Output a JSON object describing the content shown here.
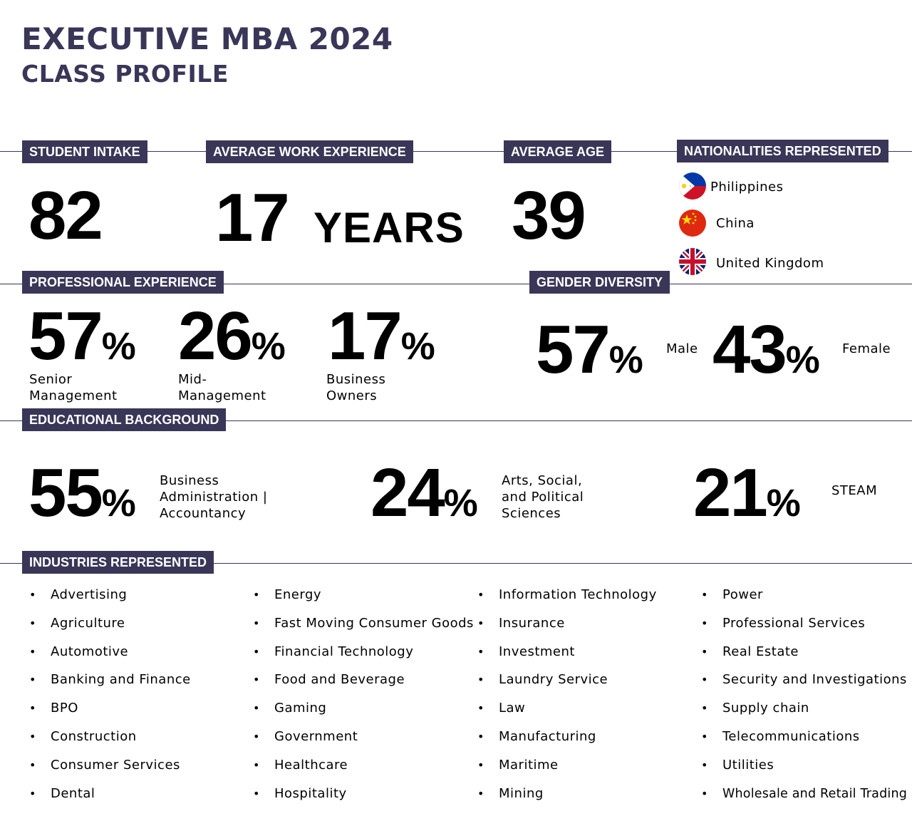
{
  "header": {
    "title": "EXECUTIVE MBA 2024",
    "subtitle": "CLASS PROFILE"
  },
  "student_intake": {
    "label": "STUDENT INTAKE",
    "value": "82"
  },
  "work_experience": {
    "label": "AVERAGE WORK EXPERIENCE",
    "value": "17",
    "unit": "YEARS"
  },
  "average_age": {
    "label": "AVERAGE AGE",
    "value": "39"
  },
  "nationalities": {
    "label": "NATIONALITIES REPRESENTED",
    "items": [
      {
        "name": "Philippines",
        "icon": "philippines-flag-icon"
      },
      {
        "name": "China",
        "icon": "china-flag-icon"
      },
      {
        "name": "United Kingdom",
        "icon": "uk-flag-icon"
      }
    ]
  },
  "professional_experience": {
    "label": "PROFESSIONAL EXPERIENCE",
    "items": [
      {
        "value": "57",
        "pct": "%",
        "line1": "Senior",
        "line2": "Management"
      },
      {
        "value": "26",
        "pct": "%",
        "line1": "Mid-",
        "line2": "Management"
      },
      {
        "value": "17",
        "pct": "%",
        "line1": "Business",
        "line2": "Owners"
      }
    ]
  },
  "gender_diversity": {
    "label": "GENDER DIVERSITY",
    "items": [
      {
        "value": "57",
        "pct": "%",
        "name": "Male"
      },
      {
        "value": "43",
        "pct": "%",
        "name": "Female"
      }
    ]
  },
  "educational_background": {
    "label": "EDUCATIONAL BACKGROUND",
    "items": [
      {
        "value": "55",
        "pct": "%",
        "lines": [
          "Business",
          "Administration |",
          "Accountancy"
        ]
      },
      {
        "value": "24",
        "pct": "%",
        "lines": [
          "Arts, Social,",
          "and Political",
          "Sciences"
        ]
      },
      {
        "value": "21",
        "pct": "%",
        "lines": [
          "STEAM"
        ]
      }
    ]
  },
  "industries": {
    "label": "INDUSTRIES REPRESENTED",
    "bullet": "•",
    "columns": [
      [
        "Advertising",
        "Agriculture",
        "Automotive",
        "Banking and Finance",
        "BPO",
        "Construction",
        "Consumer Services",
        "Dental"
      ],
      [
        "Energy",
        "Fast Moving Consumer Goods",
        "Financial Technology",
        "Food and Beverage",
        "Gaming",
        "Government",
        "Healthcare",
        "Hospitality"
      ],
      [
        "Information Technology",
        "Insurance",
        "Investment",
        "Laundry Service",
        "Law",
        "Manufacturing",
        "Maritime",
        "Mining"
      ],
      [
        "Power",
        "Professional Services",
        "Real Estate",
        "Security and Investigations",
        "Supply chain",
        "Telecommunications",
        "Utilities",
        "Wholesale and Retail Trading"
      ]
    ]
  },
  "colors": {
    "accent": "#3a3658",
    "text": "#000000",
    "background": "#ffffff"
  }
}
